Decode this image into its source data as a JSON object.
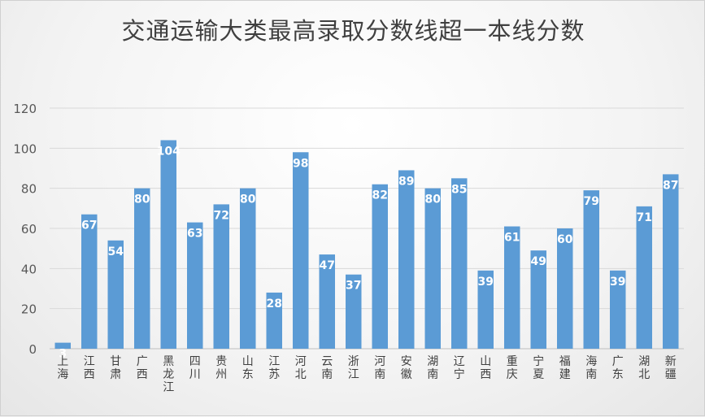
{
  "chart_data": {
    "type": "bar",
    "title": "交通运输大类最高录取分数线超一本线分数",
    "xlabel": "",
    "ylabel": "",
    "ylim": [
      0,
      120
    ],
    "yticks": [
      0,
      20,
      40,
      60,
      80,
      100,
      120
    ],
    "grid": true,
    "legend": "none",
    "bar_color": "#5b9bd5",
    "categories": [
      "上海",
      "江西",
      "甘肃",
      "广西",
      "黑龙江",
      "四川",
      "贵州",
      "山东",
      "江苏",
      "河北",
      "云南",
      "浙江",
      "河南",
      "安徽",
      "湖南",
      "辽宁",
      "山西",
      "重庆",
      "宁夏",
      "福建",
      "海南",
      "广东",
      "湖北",
      "新疆"
    ],
    "values": [
      3,
      67,
      54,
      80,
      104,
      63,
      72,
      80,
      28,
      98,
      47,
      37,
      82,
      89,
      80,
      85,
      39,
      61,
      49,
      60,
      79,
      39,
      71,
      87
    ]
  }
}
